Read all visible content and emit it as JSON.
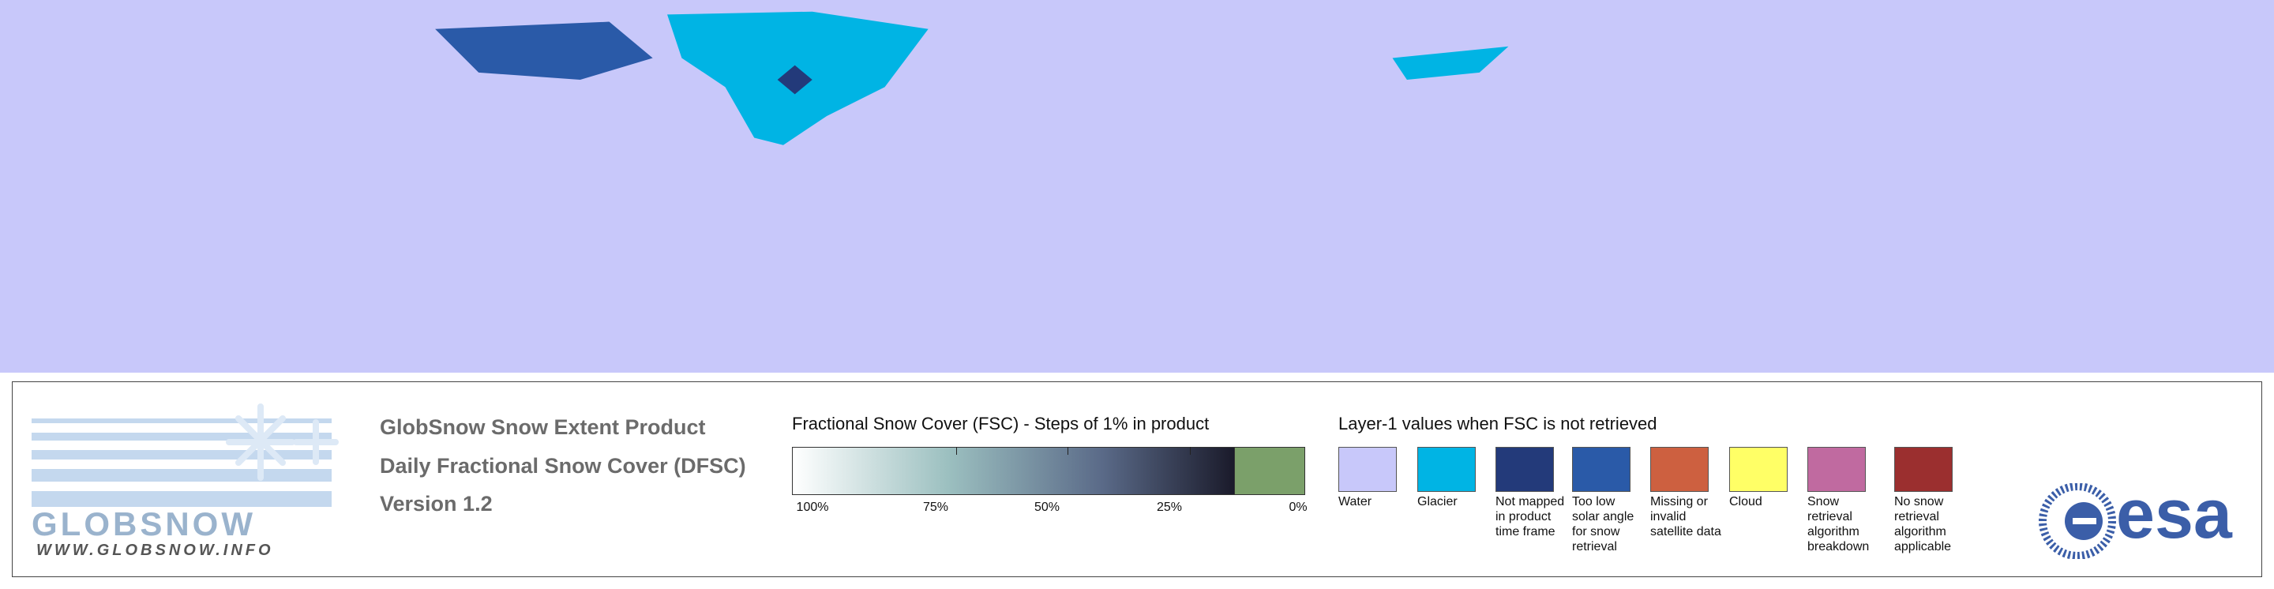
{
  "logo": {
    "name": "GLOBSNOW",
    "url": "WWW.GLOBSNOW.INFO"
  },
  "product": {
    "title": "GlobSnow Snow Extent Product",
    "subtitle": "Daily Fractional Snow Cover (DFSC)",
    "version": "Version 1.2"
  },
  "fsc_legend": {
    "title": "Fractional Snow Cover (FSC) - Steps of 1% in product",
    "ticks": [
      "100%",
      "75%",
      "50%",
      "25%",
      "0%"
    ]
  },
  "layer1_legend": {
    "title": "Layer-1 values when FSC is not retrieved",
    "items": [
      {
        "label": "Water",
        "color": "#c8c8fa"
      },
      {
        "label": "Glacier",
        "color": "#00b4e4"
      },
      {
        "label": "Not mapped in product time frame",
        "color": "#233a7a"
      },
      {
        "label": "Too low solar angle for snow retrieval",
        "color": "#2a5aa8"
      },
      {
        "label": "Missing or invalid satellite data",
        "color": "#cd6040"
      },
      {
        "label": "Cloud",
        "color": "#ffff66"
      },
      {
        "label": "Snow retrieval algorithm breakdown",
        "color": "#c06aa0"
      },
      {
        "label": "No snow retrieval algorithm applicable",
        "color": "#9b2f2f"
      }
    ]
  },
  "esa": "esa"
}
